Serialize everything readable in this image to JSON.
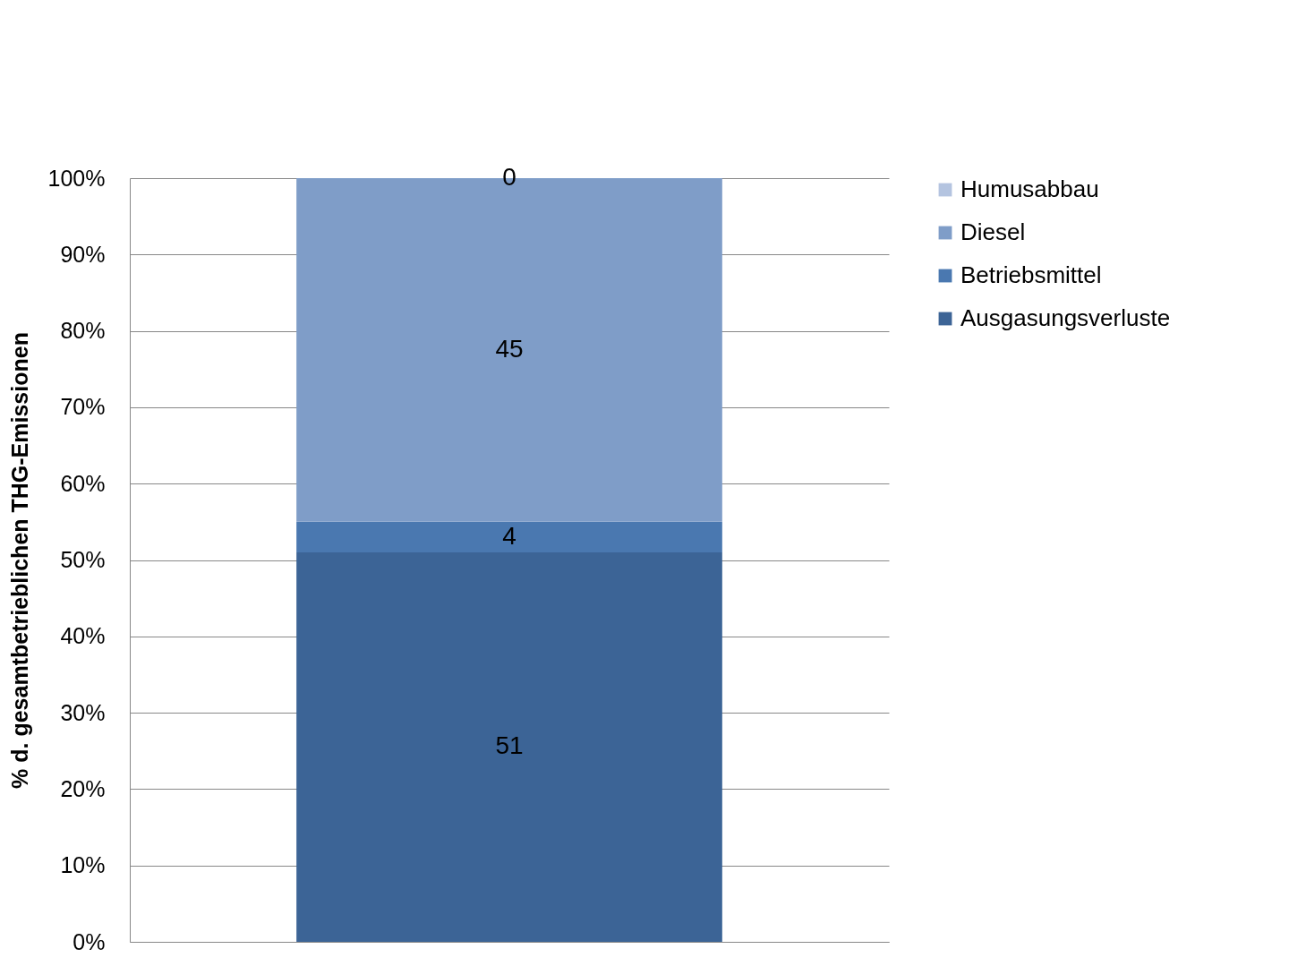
{
  "chart_data": {
    "type": "bar",
    "stacked": true,
    "ylabel": "% d. gesamtbetrieblichen THG-Emissionen",
    "categories": [
      null
    ],
    "series": [
      {
        "name": "Ausgasungsverluste",
        "color": "#3c6496",
        "values": [
          51
        ]
      },
      {
        "name": "Betriebsmittel",
        "color": "#4a78b0",
        "values": [
          4
        ]
      },
      {
        "name": "Diesel",
        "color": "#7f9dc8",
        "values": [
          45
        ]
      },
      {
        "name": "Humusabbau",
        "color": "#b4c4e0",
        "values": [
          0
        ]
      }
    ],
    "ylim": [
      0,
      100
    ],
    "yticks": [
      {
        "value": 0,
        "label": "0%"
      },
      {
        "value": 10,
        "label": "10%"
      },
      {
        "value": 20,
        "label": "20%"
      },
      {
        "value": 30,
        "label": "30%"
      },
      {
        "value": 40,
        "label": "40%"
      },
      {
        "value": 50,
        "label": "50%"
      },
      {
        "value": 60,
        "label": "60%"
      },
      {
        "value": 70,
        "label": "70%"
      },
      {
        "value": 80,
        "label": "80%"
      },
      {
        "value": 90,
        "label": "90%"
      },
      {
        "value": 100,
        "label": "100%"
      }
    ],
    "grid": "y",
    "legend": "right",
    "data_labels": true
  }
}
